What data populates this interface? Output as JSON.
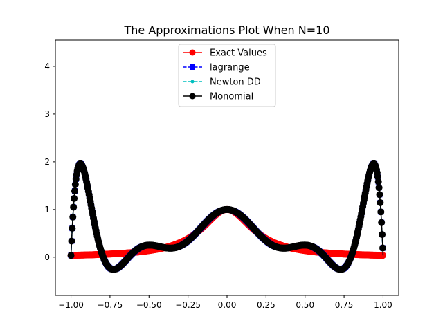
{
  "chart_data": {
    "type": "line",
    "title": "The Approximations Plot When N=10",
    "xlabel": "",
    "ylabel": "",
    "xlim": [
      -1.1,
      1.1
    ],
    "ylim": [
      -0.8,
      4.55
    ],
    "xticks": [
      -1.0,
      -0.75,
      -0.5,
      -0.25,
      0.0,
      0.25,
      0.5,
      0.75,
      1.0
    ],
    "xtick_labels": [
      "−1.00",
      "−0.75",
      "−0.50",
      "−0.25",
      "0.00",
      "0.25",
      "0.50",
      "0.75",
      "1.00"
    ],
    "yticks": [
      0,
      1,
      2,
      3,
      4
    ],
    "ytick_labels": [
      "0",
      "1",
      "2",
      "3",
      "4"
    ],
    "grid": false,
    "legend_position": "top-center",
    "x_range": [
      -1.0,
      1.0
    ],
    "series": [
      {
        "name": "Exact Values",
        "color": "#ff0000",
        "linestyle": "solid",
        "marker": "circle",
        "function": "1/(1+25x^2)"
      },
      {
        "name": "lagrange",
        "color": "#0000ff",
        "linestyle": "dashed",
        "marker": "square",
        "function": "degree-10 equispaced interpolant of 1/(1+25x^2)"
      },
      {
        "name": "Newton DD",
        "color": "#00bfbf",
        "linestyle": "dashed",
        "marker": "small-circle",
        "function": "degree-10 equispaced interpolant of 1/(1+25x^2)"
      },
      {
        "name": "Monomial",
        "color": "#000000",
        "linestyle": "solid",
        "marker": "circle",
        "function": "degree-10 equispaced interpolant of 1/(1+25x^2)"
      }
    ]
  }
}
